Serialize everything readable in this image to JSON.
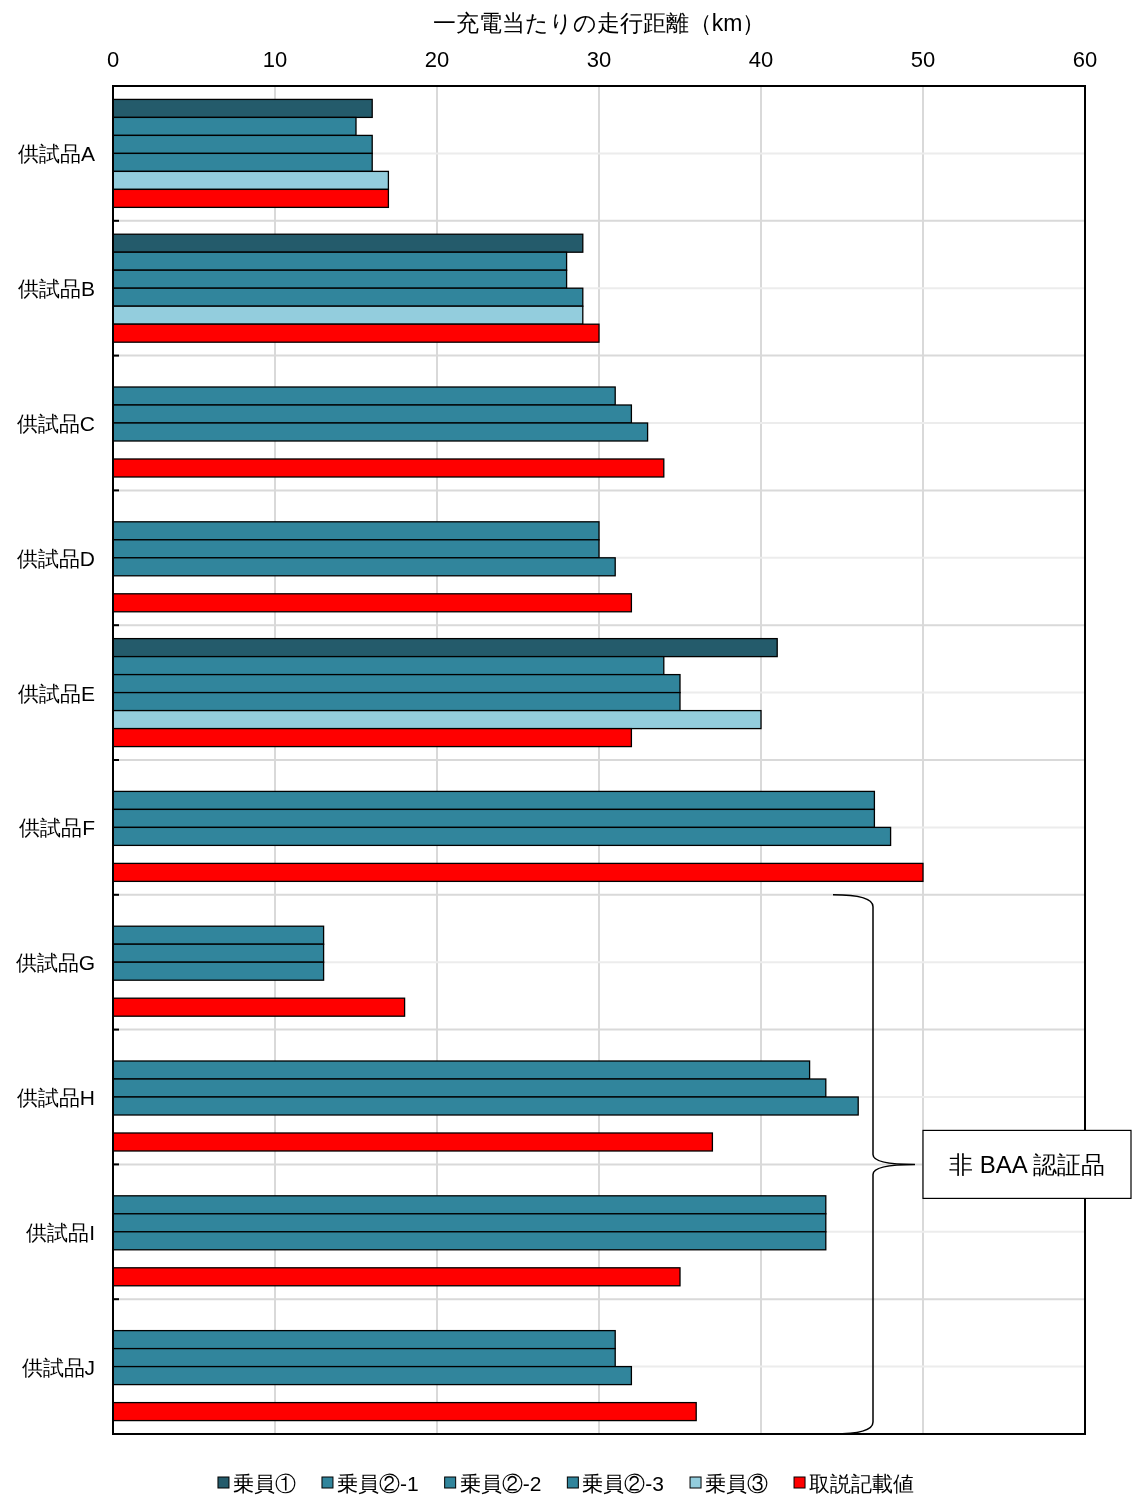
{
  "chart_data": {
    "type": "bar",
    "orientation": "horizontal",
    "xlabel": "一充電当たりの走行距離（km）",
    "categories": [
      "供試品A",
      "供試品B",
      "供試品C",
      "供試品D",
      "供試品E",
      "供試品F",
      "供試品G",
      "供試品H",
      "供試品I",
      "供試品J"
    ],
    "series": [
      {
        "name": "乗員①",
        "color": "#245b6b",
        "values": [
          16,
          29,
          null,
          null,
          41,
          null,
          null,
          null,
          null,
          null
        ]
      },
      {
        "name": "乗員②-1",
        "color": "#31859c",
        "values": [
          15,
          28,
          31,
          30,
          34,
          47,
          13,
          43,
          44,
          31
        ]
      },
      {
        "name": "乗員②-2",
        "color": "#31859c",
        "values": [
          16,
          28,
          32,
          30,
          35,
          47,
          13,
          44,
          44,
          31
        ]
      },
      {
        "name": "乗員②-3",
        "color": "#31859c",
        "values": [
          16,
          29,
          33,
          31,
          35,
          48,
          13,
          46,
          44,
          32
        ]
      },
      {
        "name": "乗員③",
        "color": "#93cddd",
        "values": [
          17,
          29,
          null,
          null,
          40,
          null,
          null,
          null,
          null,
          null
        ]
      },
      {
        "name": "取説記載値",
        "color": "#ff0000",
        "values": [
          17,
          30,
          34,
          32,
          32,
          50,
          18,
          37,
          35,
          36
        ]
      }
    ],
    "xlim": [
      0,
      60
    ],
    "xticks": [
      0,
      10,
      20,
      30,
      40,
      50,
      60
    ],
    "grid": true,
    "legend": "bottom",
    "annotations": [
      "非 BAA 認証品"
    ]
  }
}
